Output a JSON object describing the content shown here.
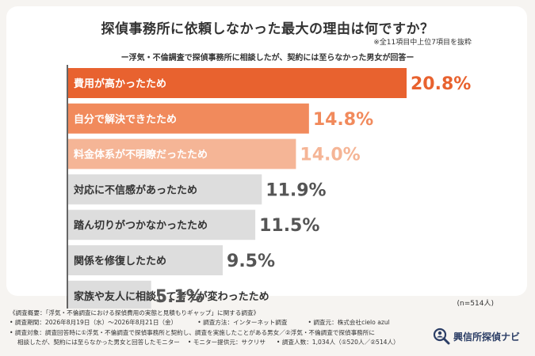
{
  "header": {
    "title": "探偵事務所に依頼しなかった最大の理由は何ですか？",
    "note": "※全11項目中上位7項目を抜粋",
    "subtitle": "ー浮気・不倫調査で探偵事務所に相談したが、契約には至らなかった男女が回答ー"
  },
  "chart_data": {
    "type": "bar",
    "orientation": "horizontal",
    "categories": [
      "費用が高かったため",
      "自分で解決できたため",
      "料金体系が不明瞭だったため",
      "対応に不信感があったため",
      "踏ん切りがつかなかったため",
      "関係を修復したため",
      "家族や友人に相談して考えが変わったため"
    ],
    "values": [
      20.8,
      14.8,
      14.0,
      11.9,
      11.5,
      9.5,
      5.1
    ],
    "value_labels": [
      "20.8%",
      "14.8%",
      "14.0%",
      "11.9%",
      "11.5%",
      "9.5%",
      "5.1%"
    ],
    "colors": [
      "#e8622f",
      "#f18a5c",
      "#f5b596",
      "#dddddd",
      "#dddddd",
      "#dddddd",
      "#dddddd"
    ],
    "label_colors": [
      "#ffffff",
      "#ffffff",
      "#ffffff",
      "#333333",
      "#333333",
      "#333333",
      "#333333"
    ],
    "value_colors": [
      "#e8622f",
      "#f18a5c",
      "#f5b596",
      "#555555",
      "#555555",
      "#555555",
      "#555555"
    ],
    "xlim": [
      0,
      20.8
    ]
  },
  "sample": "(n=514人)",
  "footer": {
    "line1": "《調査概要：「浮気・不倫調査における探偵費用の実態と見積もりギャップ」に関する調査》",
    "line2a": "• 調査期間：2026年8月19日（水）〜2026年8月21日（金）",
    "line2b": "• 調査方法：インターネット調査",
    "line2c": "• 調査元：株式会社cielo azul",
    "line3": "• 調査対象：調査回答時に①浮気・不倫調査で探偵事務所と契約し、調査を実施したことがある男女／②浮気・不倫調査で探偵事務所に",
    "line4a": "相談したが、契約には至らなかった男女と回答したモニター",
    "line4b": "• モニター提供元：サクリサ",
    "line4c": "• 調査人数：1,034人（①520人／②514人）"
  },
  "logo": {
    "text": "興信所探偵ナビ",
    "color": "#2c3e66"
  }
}
